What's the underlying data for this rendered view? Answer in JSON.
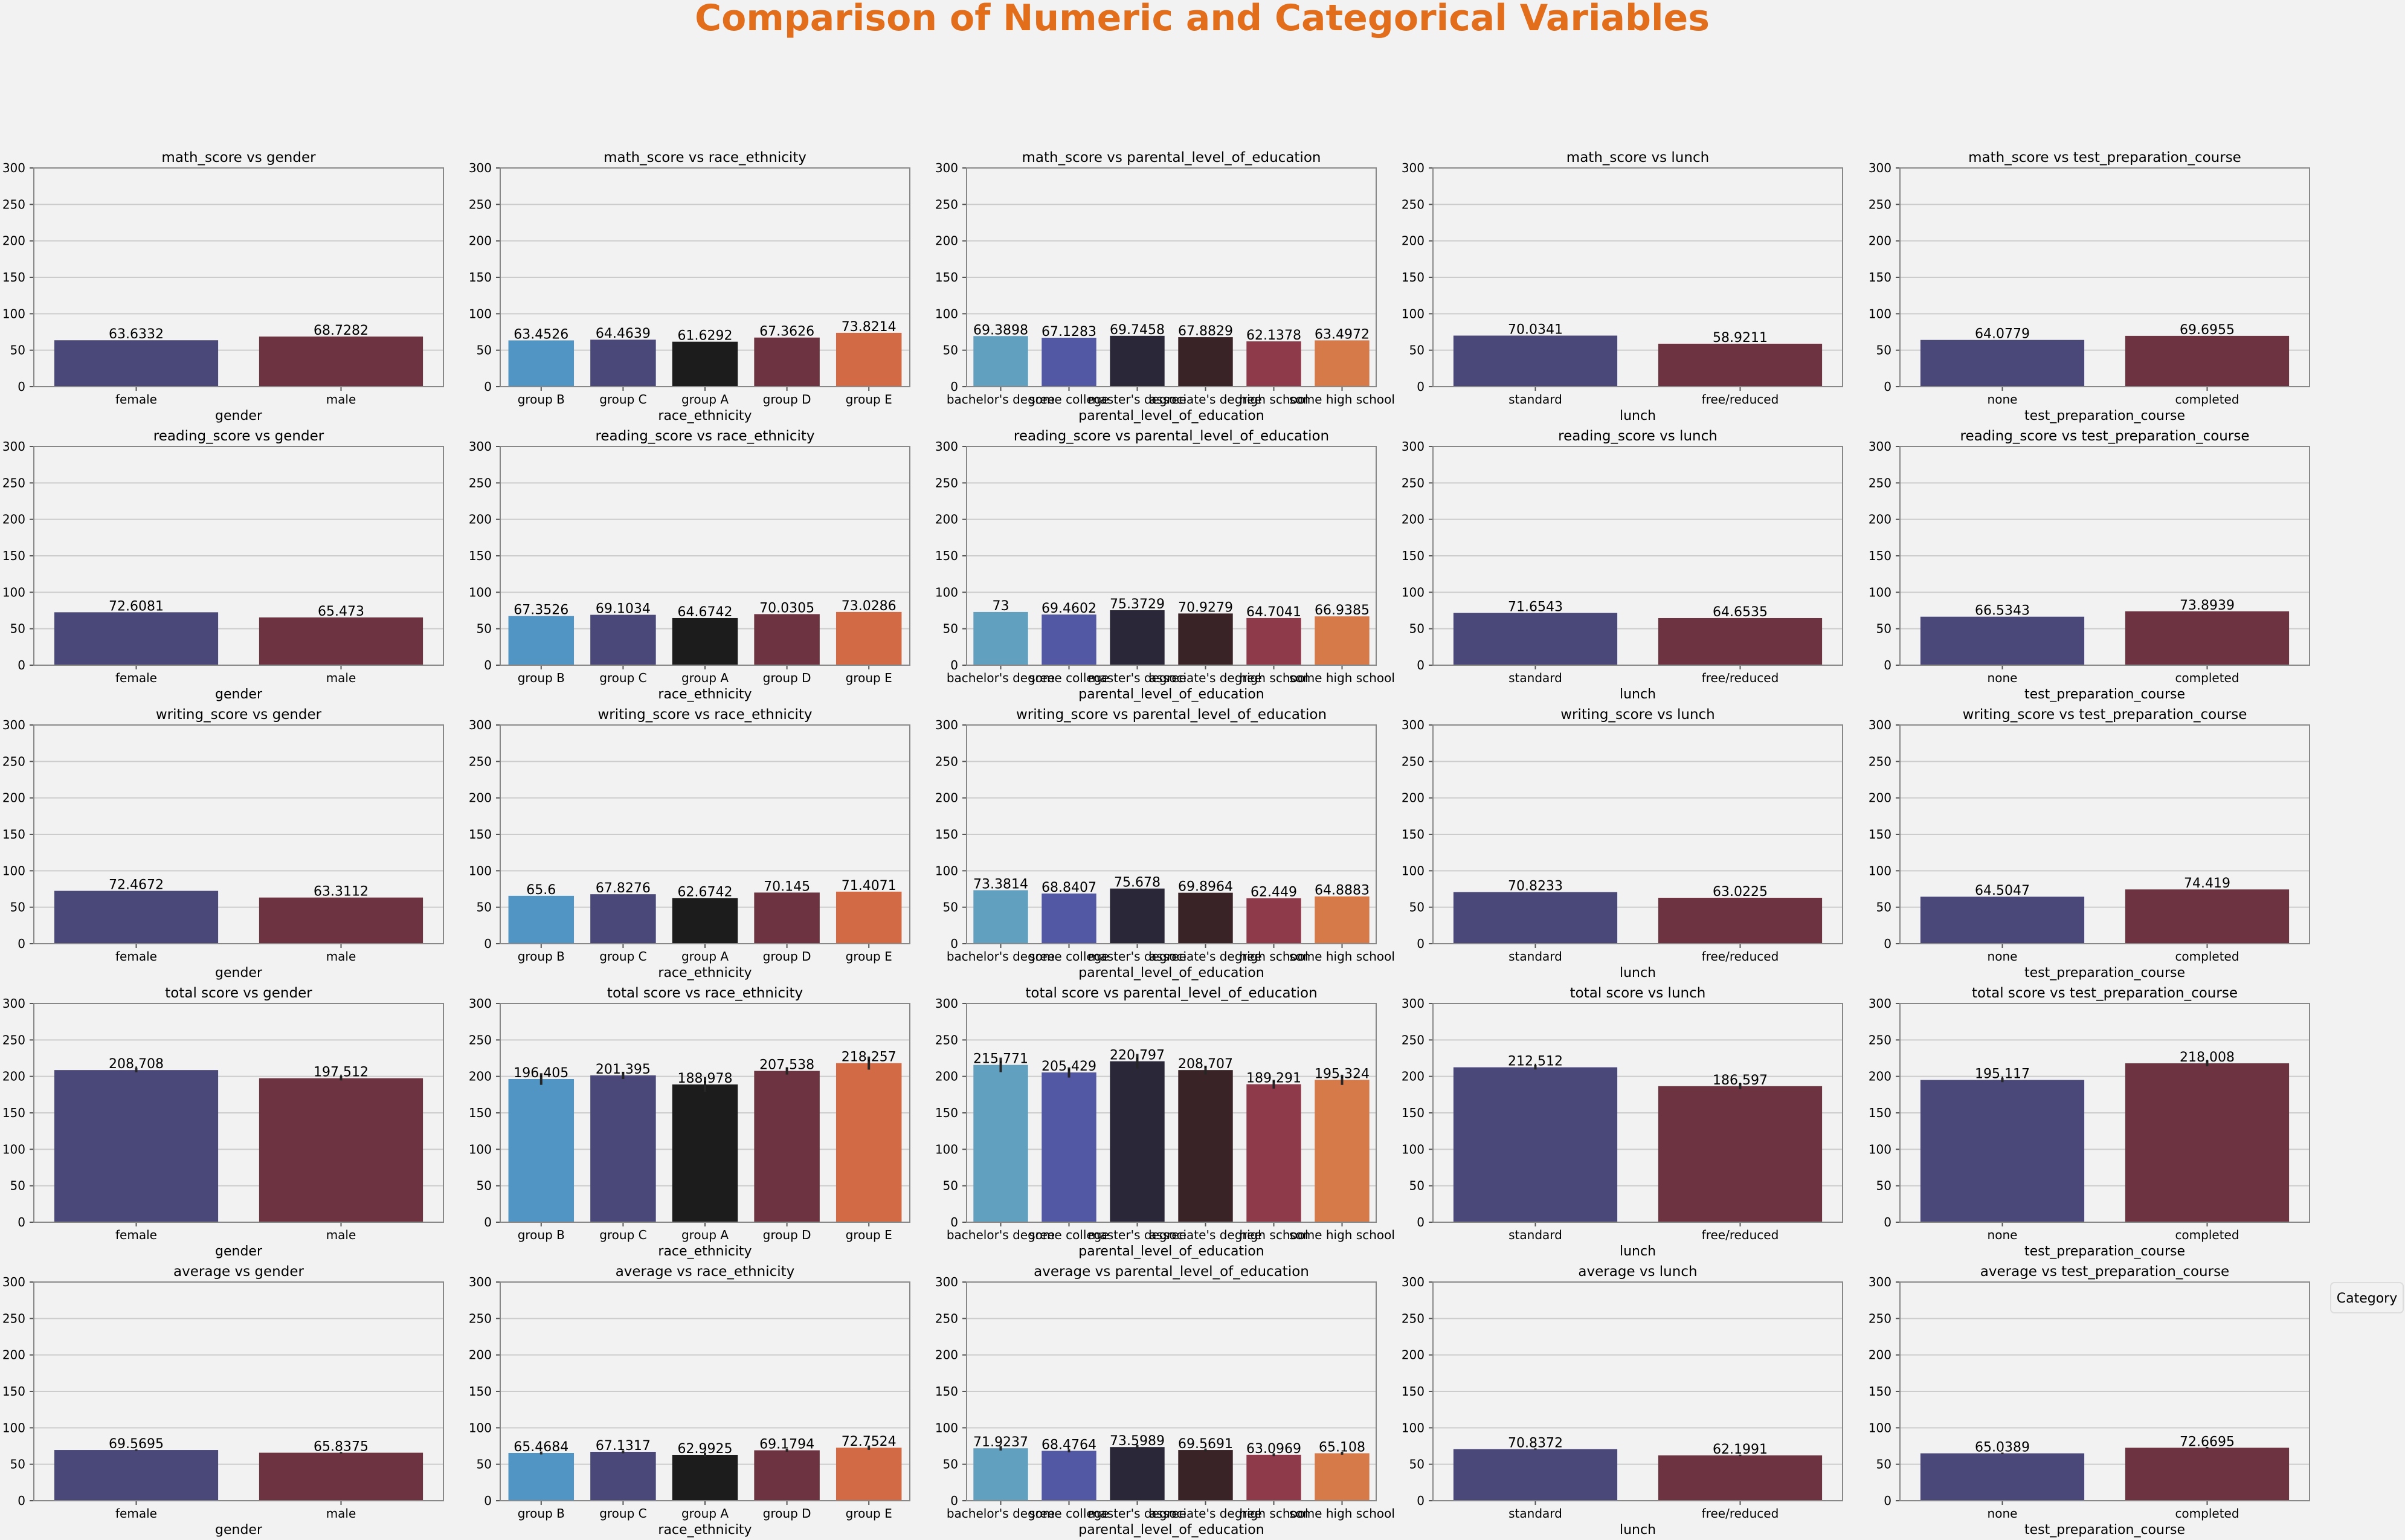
{
  "figure_title": "Comparison of Numeric and Categorical Variables",
  "legend_title": "Category",
  "colors": {
    "title": "#e26d1b",
    "background": "#f2f2f2",
    "grid": "#cccccc",
    "axis": "#888888",
    "text": "#000000"
  },
  "chart_data": [
    {
      "type": "bar",
      "title": "math_score vs gender",
      "xlabel": "gender",
      "ylim": [
        0,
        300
      ],
      "yticks": [
        0,
        50,
        100,
        150,
        200,
        250,
        300
      ],
      "categories": [
        "female",
        "male"
      ],
      "values": [
        63.6332,
        68.7282
      ],
      "value_labels": [
        "63.6332",
        "68.7282"
      ],
      "errors": [
        0,
        0
      ],
      "colors": [
        "#4a4878",
        "#6e3340"
      ],
      "grid": true
    },
    {
      "type": "bar",
      "title": "math_score vs race_ethnicity",
      "xlabel": "race_ethnicity",
      "ylim": [
        0,
        300
      ],
      "yticks": [
        0,
        50,
        100,
        150,
        200,
        250,
        300
      ],
      "categories": [
        "group B",
        "group C",
        "group A",
        "group D",
        "group E"
      ],
      "values": [
        63.4526,
        64.4639,
        61.6292,
        67.3626,
        73.8214
      ],
      "value_labels": [
        "63.4526",
        "64.4639",
        "61.6292",
        "67.3626",
        "73.8214"
      ],
      "errors": [
        0,
        0,
        0,
        0,
        0
      ],
      "colors": [
        "#5195c5",
        "#4a4878",
        "#1c1c1c",
        "#6e3340",
        "#d26a45"
      ],
      "grid": true
    },
    {
      "type": "bar",
      "title": "math_score vs parental_level_of_education",
      "xlabel": "parental_level_of_education",
      "ylim": [
        0,
        300
      ],
      "yticks": [
        0,
        50,
        100,
        150,
        200,
        250,
        300
      ],
      "categories": [
        "bachelor's degree",
        "some college",
        "master's degree",
        "associate's degree",
        "high school",
        "some high school"
      ],
      "values": [
        69.3898,
        67.1283,
        69.7458,
        67.8829,
        62.1378,
        63.4972
      ],
      "value_labels": [
        "69.3898",
        "67.1283",
        "69.7458",
        "67.8829",
        "62.1378",
        "63.4972"
      ],
      "errors": [
        0,
        0,
        0,
        0,
        0,
        0
      ],
      "colors": [
        "#62a0c0",
        "#5258a4",
        "#2a2838",
        "#3a2326",
        "#8f3a4a",
        "#d67a4a"
      ],
      "grid": true
    },
    {
      "type": "bar",
      "title": "math_score vs lunch",
      "xlabel": "lunch",
      "ylim": [
        0,
        300
      ],
      "yticks": [
        0,
        50,
        100,
        150,
        200,
        250,
        300
      ],
      "categories": [
        "standard",
        "free/reduced"
      ],
      "values": [
        70.0341,
        58.9211
      ],
      "value_labels": [
        "70.0341",
        "58.9211"
      ],
      "errors": [
        0,
        0
      ],
      "colors": [
        "#4a4878",
        "#6e3340"
      ],
      "grid": true
    },
    {
      "type": "bar",
      "title": "math_score vs test_preparation_course",
      "xlabel": "test_preparation_course",
      "ylim": [
        0,
        300
      ],
      "yticks": [
        0,
        50,
        100,
        150,
        200,
        250,
        300
      ],
      "categories": [
        "none",
        "completed"
      ],
      "values": [
        64.0779,
        69.6955
      ],
      "value_labels": [
        "64.0779",
        "69.6955"
      ],
      "errors": [
        0,
        0
      ],
      "colors": [
        "#4a4878",
        "#6e3340"
      ],
      "grid": true
    },
    {
      "type": "bar",
      "title": "reading_score vs gender",
      "xlabel": "gender",
      "ylim": [
        0,
        300
      ],
      "yticks": [
        0,
        50,
        100,
        150,
        200,
        250,
        300
      ],
      "categories": [
        "female",
        "male"
      ],
      "values": [
        72.6081,
        65.473
      ],
      "value_labels": [
        "72.6081",
        "65.473"
      ],
      "errors": [
        0,
        0
      ],
      "colors": [
        "#4a4878",
        "#6e3340"
      ],
      "grid": true
    },
    {
      "type": "bar",
      "title": "reading_score vs race_ethnicity",
      "xlabel": "race_ethnicity",
      "ylim": [
        0,
        300
      ],
      "yticks": [
        0,
        50,
        100,
        150,
        200,
        250,
        300
      ],
      "categories": [
        "group B",
        "group C",
        "group A",
        "group D",
        "group E"
      ],
      "values": [
        67.3526,
        69.1034,
        64.6742,
        70.0305,
        73.0286
      ],
      "value_labels": [
        "67.3526",
        "69.1034",
        "64.6742",
        "70.0305",
        "73.0286"
      ],
      "errors": [
        0,
        0,
        0,
        0,
        0
      ],
      "colors": [
        "#5195c5",
        "#4a4878",
        "#1c1c1c",
        "#6e3340",
        "#d26a45"
      ],
      "grid": true
    },
    {
      "type": "bar",
      "title": "reading_score vs parental_level_of_education",
      "xlabel": "parental_level_of_education",
      "ylim": [
        0,
        300
      ],
      "yticks": [
        0,
        50,
        100,
        150,
        200,
        250,
        300
      ],
      "categories": [
        "bachelor's degree",
        "some college",
        "master's degree",
        "associate's degree",
        "high school",
        "some high school"
      ],
      "values": [
        73,
        69.4602,
        75.3729,
        70.9279,
        64.7041,
        66.9385
      ],
      "value_labels": [
        "73",
        "69.4602",
        "75.3729",
        "70.9279",
        "64.7041",
        "66.9385"
      ],
      "errors": [
        0,
        0,
        0,
        0,
        0,
        0
      ],
      "colors": [
        "#62a0c0",
        "#5258a4",
        "#2a2838",
        "#3a2326",
        "#8f3a4a",
        "#d67a4a"
      ],
      "grid": true
    },
    {
      "type": "bar",
      "title": "reading_score vs lunch",
      "xlabel": "lunch",
      "ylim": [
        0,
        300
      ],
      "yticks": [
        0,
        50,
        100,
        150,
        200,
        250,
        300
      ],
      "categories": [
        "standard",
        "free/reduced"
      ],
      "values": [
        71.6543,
        64.6535
      ],
      "value_labels": [
        "71.6543",
        "64.6535"
      ],
      "errors": [
        0,
        0
      ],
      "colors": [
        "#4a4878",
        "#6e3340"
      ],
      "grid": true
    },
    {
      "type": "bar",
      "title": "reading_score vs test_preparation_course",
      "xlabel": "test_preparation_course",
      "ylim": [
        0,
        300
      ],
      "yticks": [
        0,
        50,
        100,
        150,
        200,
        250,
        300
      ],
      "categories": [
        "none",
        "completed"
      ],
      "values": [
        66.5343,
        73.8939
      ],
      "value_labels": [
        "66.5343",
        "73.8939"
      ],
      "errors": [
        0,
        0
      ],
      "colors": [
        "#4a4878",
        "#6e3340"
      ],
      "grid": true
    },
    {
      "type": "bar",
      "title": "writing_score vs gender",
      "xlabel": "gender",
      "ylim": [
        0,
        300
      ],
      "yticks": [
        0,
        50,
        100,
        150,
        200,
        250,
        300
      ],
      "categories": [
        "female",
        "male"
      ],
      "values": [
        72.4672,
        63.3112
      ],
      "value_labels": [
        "72.4672",
        "63.3112"
      ],
      "errors": [
        0,
        0
      ],
      "colors": [
        "#4a4878",
        "#6e3340"
      ],
      "grid": true
    },
    {
      "type": "bar",
      "title": "writing_score vs race_ethnicity",
      "xlabel": "race_ethnicity",
      "ylim": [
        0,
        300
      ],
      "yticks": [
        0,
        50,
        100,
        150,
        200,
        250,
        300
      ],
      "categories": [
        "group B",
        "group C",
        "group A",
        "group D",
        "group E"
      ],
      "values": [
        65.6,
        67.8276,
        62.6742,
        70.145,
        71.4071
      ],
      "value_labels": [
        "65.6",
        "67.8276",
        "62.6742",
        "70.145",
        "71.4071"
      ],
      "errors": [
        0,
        0,
        0,
        0,
        0
      ],
      "colors": [
        "#5195c5",
        "#4a4878",
        "#1c1c1c",
        "#6e3340",
        "#d26a45"
      ],
      "grid": true
    },
    {
      "type": "bar",
      "title": "writing_score vs parental_level_of_education",
      "xlabel": "parental_level_of_education",
      "ylim": [
        0,
        300
      ],
      "yticks": [
        0,
        50,
        100,
        150,
        200,
        250,
        300
      ],
      "categories": [
        "bachelor's degree",
        "some college",
        "master's degree",
        "associate's degree",
        "high school",
        "some high school"
      ],
      "values": [
        73.3814,
        68.8407,
        75.678,
        69.8964,
        62.449,
        64.8883
      ],
      "value_labels": [
        "73.3814",
        "68.8407",
        "75.678",
        "69.8964",
        "62.449",
        "64.8883"
      ],
      "errors": [
        0,
        0,
        0,
        0,
        0,
        0
      ],
      "colors": [
        "#62a0c0",
        "#5258a4",
        "#2a2838",
        "#3a2326",
        "#8f3a4a",
        "#d67a4a"
      ],
      "grid": true
    },
    {
      "type": "bar",
      "title": "writing_score vs lunch",
      "xlabel": "lunch",
      "ylim": [
        0,
        300
      ],
      "yticks": [
        0,
        50,
        100,
        150,
        200,
        250,
        300
      ],
      "categories": [
        "standard",
        "free/reduced"
      ],
      "values": [
        70.8233,
        63.0225
      ],
      "value_labels": [
        "70.8233",
        "63.0225"
      ],
      "errors": [
        0,
        0
      ],
      "colors": [
        "#4a4878",
        "#6e3340"
      ],
      "grid": true
    },
    {
      "type": "bar",
      "title": "writing_score vs test_preparation_course",
      "xlabel": "test_preparation_course",
      "ylim": [
        0,
        300
      ],
      "yticks": [
        0,
        50,
        100,
        150,
        200,
        250,
        300
      ],
      "categories": [
        "none",
        "completed"
      ],
      "values": [
        64.5047,
        74.419
      ],
      "value_labels": [
        "64.5047",
        "74.419"
      ],
      "errors": [
        0,
        0
      ],
      "colors": [
        "#4a4878",
        "#6e3340"
      ],
      "grid": true
    },
    {
      "type": "bar",
      "title": "total score vs gender",
      "xlabel": "gender",
      "ylim": [
        0,
        300
      ],
      "yticks": [
        0,
        50,
        100,
        150,
        200,
        250,
        300
      ],
      "categories": [
        "female",
        "male"
      ],
      "values": [
        208.708,
        197.512
      ],
      "value_labels": [
        "208.708",
        "197.512"
      ],
      "errors": [
        3,
        3
      ],
      "colors": [
        "#4a4878",
        "#6e3340"
      ],
      "grid": true
    },
    {
      "type": "bar",
      "title": "total score vs race_ethnicity",
      "xlabel": "race_ethnicity",
      "ylim": [
        0,
        300
      ],
      "yticks": [
        0,
        50,
        100,
        150,
        200,
        250,
        300
      ],
      "categories": [
        "group B",
        "group C",
        "group A",
        "group D",
        "group E"
      ],
      "values": [
        196.405,
        201.395,
        188.978,
        207.538,
        218.257
      ],
      "value_labels": [
        "196.405",
        "201.395",
        "188.978",
        "207.538",
        "218.257"
      ],
      "errors": [
        8,
        5,
        10,
        5,
        9
      ],
      "colors": [
        "#5195c5",
        "#4a4878",
        "#1c1c1c",
        "#6e3340",
        "#d26a45"
      ],
      "grid": true
    },
    {
      "type": "bar",
      "title": "total score vs parental_level_of_education",
      "xlabel": "parental_level_of_education",
      "ylim": [
        0,
        300
      ],
      "yticks": [
        0,
        50,
        100,
        150,
        200,
        250,
        300
      ],
      "categories": [
        "bachelor's degree",
        "some college",
        "master's degree",
        "associate's degree",
        "high school",
        "some high school"
      ],
      "values": [
        215.771,
        205.429,
        220.797,
        208.707,
        189.291,
        195.324
      ],
      "value_labels": [
        "215.771",
        "205.429",
        "220.797",
        "208.707",
        "189.291",
        "195.324"
      ],
      "errors": [
        10,
        7,
        10,
        6,
        6,
        7
      ],
      "colors": [
        "#62a0c0",
        "#5258a4",
        "#2a2838",
        "#3a2326",
        "#8f3a4a",
        "#d67a4a"
      ],
      "grid": true
    },
    {
      "type": "bar",
      "title": "total score vs lunch",
      "xlabel": "lunch",
      "ylim": [
        0,
        300
      ],
      "yticks": [
        0,
        50,
        100,
        150,
        200,
        250,
        300
      ],
      "categories": [
        "standard",
        "free/reduced"
      ],
      "values": [
        212.512,
        186.597
      ],
      "value_labels": [
        "212.512",
        "186.597"
      ],
      "errors": [
        3,
        4
      ],
      "colors": [
        "#4a4878",
        "#6e3340"
      ],
      "grid": true
    },
    {
      "type": "bar",
      "title": "total score vs test_preparation_course",
      "xlabel": "test_preparation_course",
      "ylim": [
        0,
        300
      ],
      "yticks": [
        0,
        50,
        100,
        150,
        200,
        250,
        300
      ],
      "categories": [
        "none",
        "completed"
      ],
      "values": [
        195.117,
        218.008
      ],
      "value_labels": [
        "195.117",
        "218.008"
      ],
      "errors": [
        3,
        4
      ],
      "colors": [
        "#4a4878",
        "#6e3340"
      ],
      "grid": true
    },
    {
      "type": "bar",
      "title": "average vs gender",
      "xlabel": "gender",
      "ylim": [
        0,
        300
      ],
      "yticks": [
        0,
        50,
        100,
        150,
        200,
        250,
        300
      ],
      "categories": [
        "female",
        "male"
      ],
      "values": [
        69.5695,
        65.8375
      ],
      "value_labels": [
        "69.5695",
        "65.8375"
      ],
      "errors": [
        1,
        1
      ],
      "colors": [
        "#4a4878",
        "#6e3340"
      ],
      "grid": true
    },
    {
      "type": "bar",
      "title": "average vs race_ethnicity",
      "xlabel": "race_ethnicity",
      "ylim": [
        0,
        300
      ],
      "yticks": [
        0,
        50,
        100,
        150,
        200,
        250,
        300
      ],
      "categories": [
        "group B",
        "group C",
        "group A",
        "group D",
        "group E"
      ],
      "values": [
        65.4684,
        67.1317,
        62.9925,
        69.1794,
        72.7524
      ],
      "value_labels": [
        "65.4684",
        "67.1317",
        "62.9925",
        "69.1794",
        "72.7524"
      ],
      "errors": [
        2,
        2,
        3,
        2,
        3
      ],
      "colors": [
        "#5195c5",
        "#4a4878",
        "#1c1c1c",
        "#6e3340",
        "#d26a45"
      ],
      "grid": true
    },
    {
      "type": "bar",
      "title": "average vs parental_level_of_education",
      "xlabel": "parental_level_of_education",
      "ylim": [
        0,
        300
      ],
      "yticks": [
        0,
        50,
        100,
        150,
        200,
        250,
        300
      ],
      "categories": [
        "bachelor's degree",
        "some college",
        "master's degree",
        "associate's degree",
        "high school",
        "some high school"
      ],
      "values": [
        71.9237,
        68.4764,
        73.5989,
        69.5691,
        63.0969,
        65.108
      ],
      "value_labels": [
        "71.9237",
        "68.4764",
        "73.5989",
        "69.5691",
        "63.0969",
        "65.108"
      ],
      "errors": [
        3,
        2,
        3,
        2,
        2,
        2
      ],
      "colors": [
        "#62a0c0",
        "#5258a4",
        "#2a2838",
        "#3a2326",
        "#8f3a4a",
        "#d67a4a"
      ],
      "grid": true
    },
    {
      "type": "bar",
      "title": "average vs lunch",
      "xlabel": "lunch",
      "ylim": [
        0,
        300
      ],
      "yticks": [
        0,
        50,
        100,
        150,
        200,
        250,
        300
      ],
      "categories": [
        "standard",
        "free/reduced"
      ],
      "values": [
        70.8372,
        62.1991
      ],
      "value_labels": [
        "70.8372",
        "62.1991"
      ],
      "errors": [
        1,
        1
      ],
      "colors": [
        "#4a4878",
        "#6e3340"
      ],
      "grid": true
    },
    {
      "type": "bar",
      "title": "average vs test_preparation_course",
      "xlabel": "test_preparation_course",
      "ylim": [
        0,
        300
      ],
      "yticks": [
        0,
        50,
        100,
        150,
        200,
        250,
        300
      ],
      "categories": [
        "none",
        "completed"
      ],
      "values": [
        65.0389,
        72.6695
      ],
      "value_labels": [
        "65.0389",
        "72.6695"
      ],
      "errors": [
        1,
        1
      ],
      "colors": [
        "#4a4878",
        "#6e3340"
      ],
      "grid": true
    }
  ]
}
